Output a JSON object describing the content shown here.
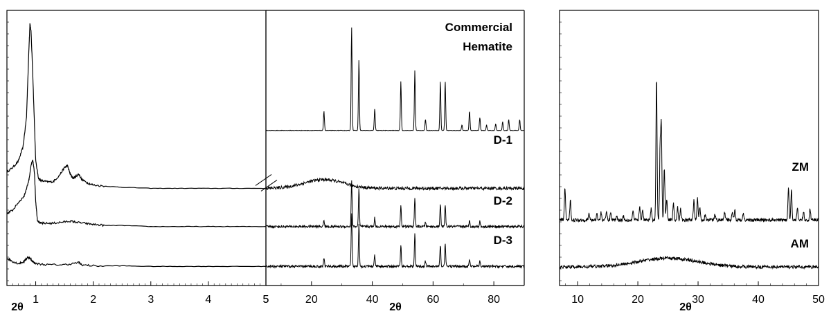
{
  "chart_data": [
    {
      "type": "line",
      "panel": "low-angle",
      "xlabel": "2θ",
      "xlim": [
        0.5,
        5
      ],
      "xticks": [
        "1",
        "2",
        "3",
        "4",
        "5"
      ],
      "xtick_values": [
        1,
        2,
        3,
        4,
        5
      ],
      "ylabel": "",
      "yticks_labeled": false,
      "series": [
        {
          "id": "D-1",
          "x": [
            0.5,
            0.6,
            0.7,
            0.78,
            0.84,
            0.88,
            0.9,
            0.92,
            0.95,
            1.0,
            1.05,
            1.1,
            1.2,
            1.3,
            1.4,
            1.5,
            1.55,
            1.6,
            1.65,
            1.7,
            1.75,
            1.8,
            1.9,
            2.0,
            2.2,
            2.5,
            3.0,
            3.5,
            4.0,
            4.5,
            5.0
          ],
          "y": [
            0.62,
            0.66,
            0.72,
            0.85,
            1.12,
            1.72,
            1.98,
            1.9,
            1.5,
            0.72,
            0.56,
            0.54,
            0.53,
            0.53,
            0.58,
            0.66,
            0.68,
            0.6,
            0.56,
            0.58,
            0.6,
            0.55,
            0.52,
            0.5,
            0.49,
            0.48,
            0.47,
            0.47,
            0.47,
            0.47,
            0.47
          ]
        },
        {
          "id": "D-2",
          "x": [
            0.5,
            0.6,
            0.7,
            0.8,
            0.88,
            0.92,
            0.95,
            0.98,
            1.0,
            1.03,
            1.08,
            1.15,
            1.3,
            1.45,
            1.6,
            1.7,
            1.85,
            2.0,
            2.2,
            2.5,
            3.0,
            3.5,
            4.0,
            4.5,
            5.0
          ],
          "y": [
            0.24,
            0.27,
            0.34,
            0.4,
            0.54,
            0.68,
            0.73,
            0.6,
            0.35,
            0.18,
            0.15,
            0.15,
            0.15,
            0.16,
            0.17,
            0.16,
            0.15,
            0.14,
            0.13,
            0.13,
            0.12,
            0.12,
            0.12,
            0.12,
            0.12
          ]
        },
        {
          "id": "D-3",
          "x": [
            0.5,
            0.6,
            0.7,
            0.8,
            0.86,
            0.9,
            0.95,
            1.0,
            1.2,
            1.5,
            1.75,
            1.8,
            2.0,
            2.5,
            3.0,
            3.5,
            4.0,
            4.5,
            5.0
          ],
          "y": [
            -0.17,
            -0.2,
            -0.22,
            -0.2,
            -0.16,
            -0.17,
            -0.2,
            -0.22,
            -0.23,
            -0.23,
            -0.21,
            -0.23,
            -0.24,
            -0.24,
            -0.245,
            -0.245,
            -0.245,
            -0.245,
            -0.245
          ]
        }
      ]
    },
    {
      "type": "line",
      "panel": "wide-angle",
      "xlabel": "2θ",
      "xlim": [
        5,
        90
      ],
      "xticks": [
        "5",
        "20",
        "40",
        "60",
        "80"
      ],
      "xtick_values": [
        5,
        20,
        40,
        60,
        80
      ],
      "ylabel": "",
      "yticks_labeled": false,
      "axis_break": true,
      "series": [
        {
          "id": "Commercial Hematite",
          "label_lines": [
            "Commercial",
            "Hematite"
          ],
          "baseline": 1.0,
          "peaks": [
            [
              24.1,
              0.18
            ],
            [
              33.2,
              0.95
            ],
            [
              35.6,
              0.65
            ],
            [
              40.8,
              0.2
            ],
            [
              49.4,
              0.45
            ],
            [
              54.0,
              0.55
            ],
            [
              57.5,
              0.1
            ],
            [
              62.4,
              0.45
            ],
            [
              64.0,
              0.45
            ],
            [
              69.5,
              0.05
            ],
            [
              72.0,
              0.18
            ],
            [
              75.4,
              0.12
            ],
            [
              77.6,
              0.05
            ],
            [
              80.6,
              0.06
            ],
            [
              82.9,
              0.08
            ],
            [
              84.9,
              0.1
            ],
            [
              88.5,
              0.1
            ]
          ]
        },
        {
          "id": "D-1",
          "label_lines": [
            "D-1"
          ],
          "baseline": 0.47,
          "hump": [
            24,
            0.08
          ]
        },
        {
          "id": "D-2",
          "label_lines": [
            "D-2"
          ],
          "baseline": 0.12,
          "peaks": [
            [
              24.1,
              0.06
            ],
            [
              33.2,
              0.42
            ],
            [
              35.6,
              0.35
            ],
            [
              40.8,
              0.08
            ],
            [
              49.4,
              0.2
            ],
            [
              54.0,
              0.27
            ],
            [
              57.5,
              0.04
            ],
            [
              62.4,
              0.2
            ],
            [
              64.0,
              0.2
            ],
            [
              72.0,
              0.06
            ],
            [
              75.4,
              0.05
            ]
          ]
        },
        {
          "id": "D-3",
          "label_lines": [
            "D-3"
          ],
          "baseline": -0.245,
          "peaks": [
            [
              24.1,
              0.08
            ],
            [
              33.2,
              0.48
            ],
            [
              35.6,
              0.4
            ],
            [
              40.8,
              0.1
            ],
            [
              49.4,
              0.2
            ],
            [
              54.0,
              0.3
            ],
            [
              57.5,
              0.05
            ],
            [
              62.4,
              0.2
            ],
            [
              64.0,
              0.22
            ],
            [
              72.0,
              0.06
            ],
            [
              75.4,
              0.05
            ]
          ]
        }
      ]
    },
    {
      "type": "line",
      "panel": "zeolite",
      "xlabel": "2θ",
      "xlim": [
        7,
        50
      ],
      "xticks": [
        "10",
        "20",
        "30",
        "40",
        "50"
      ],
      "xtick_values": [
        10,
        20,
        30,
        40,
        50
      ],
      "ylabel": "",
      "yticks_labeled": false,
      "series": [
        {
          "id": "ZM",
          "label_lines": [
            "ZM"
          ],
          "baseline": 0.18,
          "peaks": [
            [
              7.9,
              0.3
            ],
            [
              8.8,
              0.18
            ],
            [
              11.9,
              0.06
            ],
            [
              13.2,
              0.06
            ],
            [
              13.9,
              0.07
            ],
            [
              14.8,
              0.08
            ],
            [
              15.5,
              0.07
            ],
            [
              16.5,
              0.04
            ],
            [
              17.6,
              0.04
            ],
            [
              19.2,
              0.09
            ],
            [
              20.3,
              0.12
            ],
            [
              20.8,
              0.09
            ],
            [
              22.2,
              0.1
            ],
            [
              23.1,
              1.32
            ],
            [
              23.7,
              0.66
            ],
            [
              23.9,
              0.85
            ],
            [
              24.4,
              0.48
            ],
            [
              24.8,
              0.2
            ],
            [
              25.9,
              0.16
            ],
            [
              26.6,
              0.12
            ],
            [
              27.1,
              0.1
            ],
            [
              29.3,
              0.18
            ],
            [
              29.9,
              0.2
            ],
            [
              30.3,
              0.12
            ],
            [
              31.2,
              0.06
            ],
            [
              32.8,
              0.05
            ],
            [
              34.4,
              0.07
            ],
            [
              35.7,
              0.08
            ],
            [
              36.1,
              0.1
            ],
            [
              37.5,
              0.06
            ],
            [
              45.0,
              0.3
            ],
            [
              45.5,
              0.28
            ],
            [
              46.5,
              0.1
            ],
            [
              47.5,
              0.08
            ],
            [
              48.6,
              0.1
            ]
          ]
        },
        {
          "id": "AM",
          "label_lines": [
            "AM"
          ],
          "baseline": -0.25,
          "hump": [
            25,
            0.08
          ]
        }
      ]
    }
  ]
}
